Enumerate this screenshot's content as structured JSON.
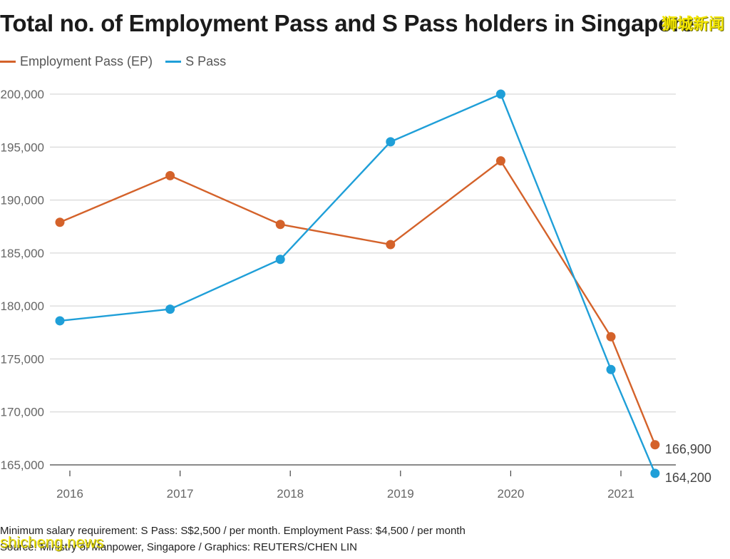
{
  "chart_data": {
    "type": "line",
    "title": "Total no. of Employment Pass and S Pass holders in Singapore",
    "categories": [
      "2016",
      "2017",
      "2018",
      "2019",
      "2020",
      "2021"
    ],
    "x": [
      2016.0,
      2017.0,
      2018.0,
      2019.0,
      2020.0,
      2021.0,
      2021.4
    ],
    "series": [
      {
        "name": "Employment Pass (EP)",
        "color": "#d4622a",
        "values": [
          187900,
          192300,
          187700,
          185800,
          193700,
          177100,
          166900
        ]
      },
      {
        "name": "S Pass",
        "color": "#1f9fd8",
        "values": [
          178600,
          179700,
          184400,
          195500,
          200000,
          174000,
          164200
        ]
      }
    ],
    "yticks": [
      "165,000",
      "170,000",
      "175,000",
      "180,000",
      "185,000",
      "190,000",
      "195,000",
      "200,000"
    ],
    "ytick_values": [
      165000,
      170000,
      175000,
      180000,
      185000,
      190000,
      195000,
      200000
    ],
    "ylim": [
      165000,
      200000
    ],
    "end_labels": [
      "166,900",
      "164,200"
    ],
    "xlabel": "",
    "ylabel": ""
  },
  "footer": {
    "note": "Minimum salary requirement: S Pass: S$2,500 / per month. Employment Pass: $4,500 / per month",
    "source": "Source: Ministry of Manpower, Singapore / Graphics: REUTERS/CHEN LIN"
  },
  "watermarks": {
    "top": "狮城新闻",
    "bottom": "shicheng.news"
  }
}
